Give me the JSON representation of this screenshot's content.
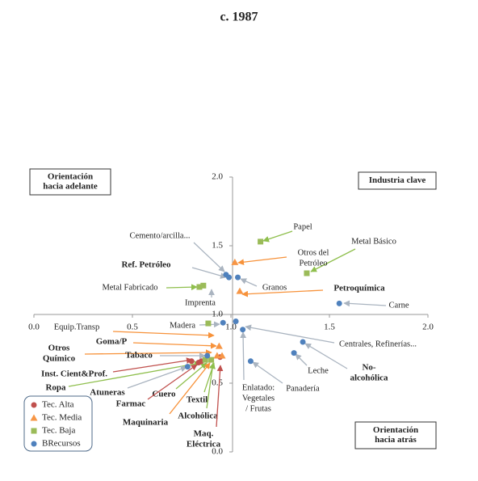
{
  "chart_data": {
    "type": "scatter",
    "title": "c. 1987",
    "xlim": [
      0,
      2
    ],
    "ylim": [
      0,
      2
    ],
    "xticks": [
      {
        "value": 0,
        "label": "0.0"
      },
      {
        "value": 0.5,
        "label": "0.5"
      },
      {
        "value": 1,
        "label": "1.0"
      },
      {
        "value": 1.5,
        "label": "1.5"
      },
      {
        "value": 2,
        "label": "2.0"
      }
    ],
    "yticks": [
      {
        "value": 0,
        "label": "0.0"
      },
      {
        "value": 0.5,
        "label": "0.5"
      },
      {
        "value": 1,
        "label": "1.0"
      },
      {
        "value": 1.5,
        "label": "1.5"
      },
      {
        "value": 2,
        "label": "2.0"
      }
    ],
    "series": [
      {
        "name": "Tec. Alta",
        "color": "#c0504d",
        "marker": "circle",
        "x": [
          0.945,
          0.836,
          0.8,
          0.85
        ],
        "values": [
          0.69,
          0.65,
          0.66,
          0.66
        ]
      },
      {
        "name": "Tec. Media",
        "color": "#f79646",
        "marker": "triangle",
        "x": [
          1.02,
          1.045,
          0.94,
          0.955,
          0.93
        ],
        "values": [
          1.38,
          1.17,
          0.77,
          0.7,
          0.7
        ]
      },
      {
        "name": "Tec. Baja",
        "color": "#9bbb59",
        "marker": "square",
        "x": [
          1.15,
          1.385,
          0.84,
          0.86,
          0.885,
          0.9,
          0.87
        ],
        "values": [
          1.53,
          1.3,
          1.2,
          1.21,
          0.935,
          0.67,
          0.67
        ]
      },
      {
        "name": "BRecursos",
        "color": "#4f81bd",
        "marker": "circle",
        "x": [
          0.975,
          0.99,
          1.035,
          1.55,
          1.025,
          1.06,
          1.365,
          1.32,
          1.1,
          0.88,
          0.78,
          0.96
        ],
        "values": [
          1.29,
          1.27,
          1.27,
          1.08,
          0.95,
          0.89,
          0.8,
          0.72,
          0.66,
          0.7,
          0.62,
          0.94
        ]
      }
    ],
    "quadrant_labels": [
      {
        "lines": [
          "Orientación",
          "hacia adelante"
        ]
      },
      {
        "lines": [
          "Industria clave"
        ]
      },
      {
        "lines": [
          "Orientación",
          "hacia atrás"
        ]
      }
    ],
    "annotations": [
      {
        "lines": [
          "Papel"
        ],
        "bold": false
      },
      {
        "lines": [
          "Cemento/arcilla..."
        ],
        "bold": false
      },
      {
        "lines": [
          "Metal Básico"
        ],
        "bold": false
      },
      {
        "lines": [
          "Otros del",
          "Petróleo"
        ],
        "bold": false
      },
      {
        "lines": [
          "Ref. Petróleo"
        ],
        "bold": true
      },
      {
        "lines": [
          "Granos"
        ],
        "bold": false
      },
      {
        "lines": [
          "Metal Fabricado"
        ],
        "bold": false
      },
      {
        "lines": [
          "Petroquímica"
        ],
        "bold": true
      },
      {
        "lines": [
          "Imprenta"
        ],
        "bold": false
      },
      {
        "lines": [
          "Carne"
        ],
        "bold": false
      },
      {
        "lines": [
          "Madera"
        ],
        "bold": false
      },
      {
        "lines": [
          "Equip.Transp"
        ],
        "bold": false
      },
      {
        "lines": [
          "Goma/P"
        ],
        "bold": true
      },
      {
        "lines": [
          "Centrales, Refinerías..."
        ],
        "bold": false
      },
      {
        "lines": [
          "Otros",
          "Químico"
        ],
        "bold": true
      },
      {
        "lines": [
          "Tabaco"
        ],
        "bold": true
      },
      {
        "lines": [
          "No-",
          "alcohólica"
        ],
        "bold": true
      },
      {
        "lines": [
          "Leche"
        ],
        "bold": false
      },
      {
        "lines": [
          "Inst. Cient&Prof."
        ],
        "bold": true
      },
      {
        "lines": [
          "Ropa"
        ],
        "bold": true
      },
      {
        "lines": [
          "Panadería"
        ],
        "bold": false
      },
      {
        "lines": [
          "Atuneras"
        ],
        "bold": true
      },
      {
        "lines": [
          "Enlatado:",
          "Vegetales",
          "/ Frutas"
        ],
        "bold": false
      },
      {
        "lines": [
          "Cuero"
        ],
        "bold": true
      },
      {
        "lines": [
          "Textil"
        ],
        "bold": true
      },
      {
        "lines": [
          "Farmac"
        ],
        "bold": true
      },
      {
        "lines": [
          "Maquinaria"
        ],
        "bold": true
      },
      {
        "lines": [
          "Alcohólica"
        ],
        "bold": true
      },
      {
        "lines": [
          "Maq.",
          "Eléctrica"
        ],
        "bold": true
      }
    ]
  }
}
